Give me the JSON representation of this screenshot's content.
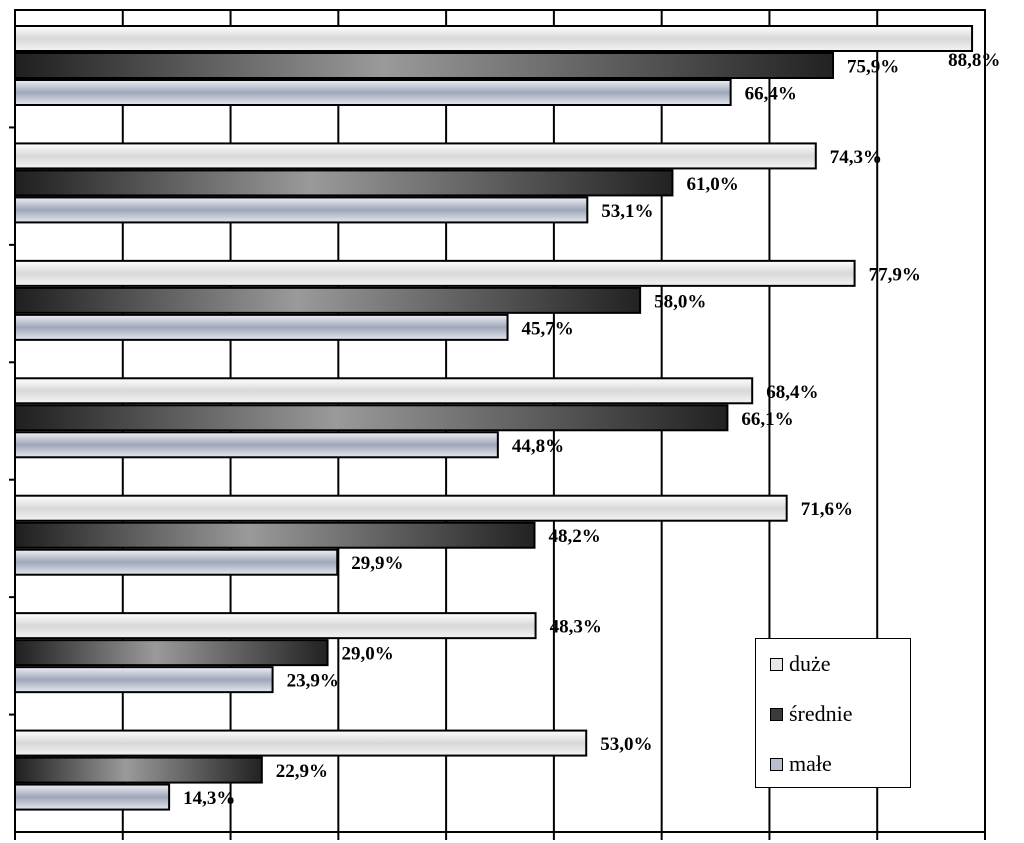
{
  "chart_data": {
    "type": "bar",
    "orientation": "horizontal",
    "xlim": [
      0,
      90
    ],
    "grid": "vertical",
    "legend_position": "bottom-right",
    "category_count": 7,
    "series": [
      {
        "name": "duże",
        "color": "#e6e6e6",
        "values": [
          88.8,
          74.3,
          77.9,
          68.4,
          71.6,
          48.3,
          53.0
        ],
        "labels": [
          "88,8%",
          "74,3%",
          "77,9%",
          "68,4%",
          "71,6%",
          "48,3%",
          "53,0%"
        ]
      },
      {
        "name": "średnie",
        "color": "#3a3a3a",
        "values": [
          75.9,
          61.0,
          58.0,
          66.1,
          48.2,
          29.0,
          22.9
        ],
        "labels": [
          "75,9%",
          "61,0%",
          "58,0%",
          "66,1%",
          "48,2%",
          "29,0%",
          "22,9%"
        ]
      },
      {
        "name": "małe",
        "color": "#b9bfcc",
        "values": [
          66.4,
          53.1,
          45.7,
          44.8,
          29.9,
          23.9,
          14.3
        ],
        "labels": [
          "66,4%",
          "53,1%",
          "45,7%",
          "44,8%",
          "29,9%",
          "23,9%",
          "14,3%"
        ]
      }
    ]
  },
  "legend": {
    "items": [
      {
        "label": "duże",
        "color": "#e6e6e6"
      },
      {
        "label": "średnie",
        "color": "#3a3a3a"
      },
      {
        "label": "małe",
        "color": "#b9bfcc"
      }
    ]
  }
}
